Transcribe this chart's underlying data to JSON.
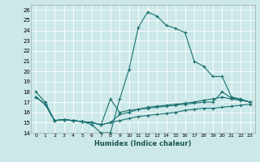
{
  "xlabel": "Humidex (Indice chaleur)",
  "bg_color": "#cce8e8",
  "grid_color": "#ffffff",
  "line_color": "#1a7070",
  "xlim": [
    -0.5,
    23.5
  ],
  "ylim": [
    14,
    26.5
  ],
  "yticks": [
    14,
    15,
    16,
    17,
    18,
    19,
    20,
    21,
    22,
    23,
    24,
    25,
    26
  ],
  "xticks": [
    0,
    1,
    2,
    3,
    4,
    5,
    6,
    7,
    8,
    9,
    10,
    11,
    12,
    13,
    14,
    15,
    16,
    17,
    18,
    19,
    20,
    21,
    22,
    23
  ],
  "series": [
    [
      18.0,
      17.0,
      15.2,
      15.3,
      15.2,
      15.1,
      14.8,
      14.0,
      14.0,
      17.3,
      20.2,
      24.3,
      25.8,
      25.4,
      24.5,
      24.2,
      23.8,
      21.0,
      20.5,
      19.5,
      19.5,
      17.5,
      17.3,
      17.0
    ],
    [
      17.5,
      16.8,
      15.2,
      15.3,
      15.2,
      15.1,
      15.0,
      14.8,
      15.0,
      15.8,
      16.0,
      16.3,
      16.5,
      16.6,
      16.7,
      16.8,
      16.9,
      17.0,
      17.2,
      17.3,
      17.5,
      17.3,
      17.2,
      17.0
    ],
    [
      17.5,
      16.8,
      15.2,
      15.3,
      15.2,
      15.1,
      15.0,
      14.8,
      15.0,
      15.2,
      15.4,
      15.6,
      15.7,
      15.8,
      15.9,
      16.0,
      16.2,
      16.3,
      16.4,
      16.4,
      16.5,
      16.6,
      16.7,
      16.8
    ],
    [
      17.5,
      16.8,
      15.2,
      15.3,
      15.2,
      15.1,
      15.0,
      14.8,
      17.3,
      16.0,
      16.2,
      16.3,
      16.4,
      16.5,
      16.6,
      16.7,
      16.8,
      16.9,
      17.0,
      17.0,
      18.0,
      17.4,
      17.2,
      17.0
    ]
  ]
}
